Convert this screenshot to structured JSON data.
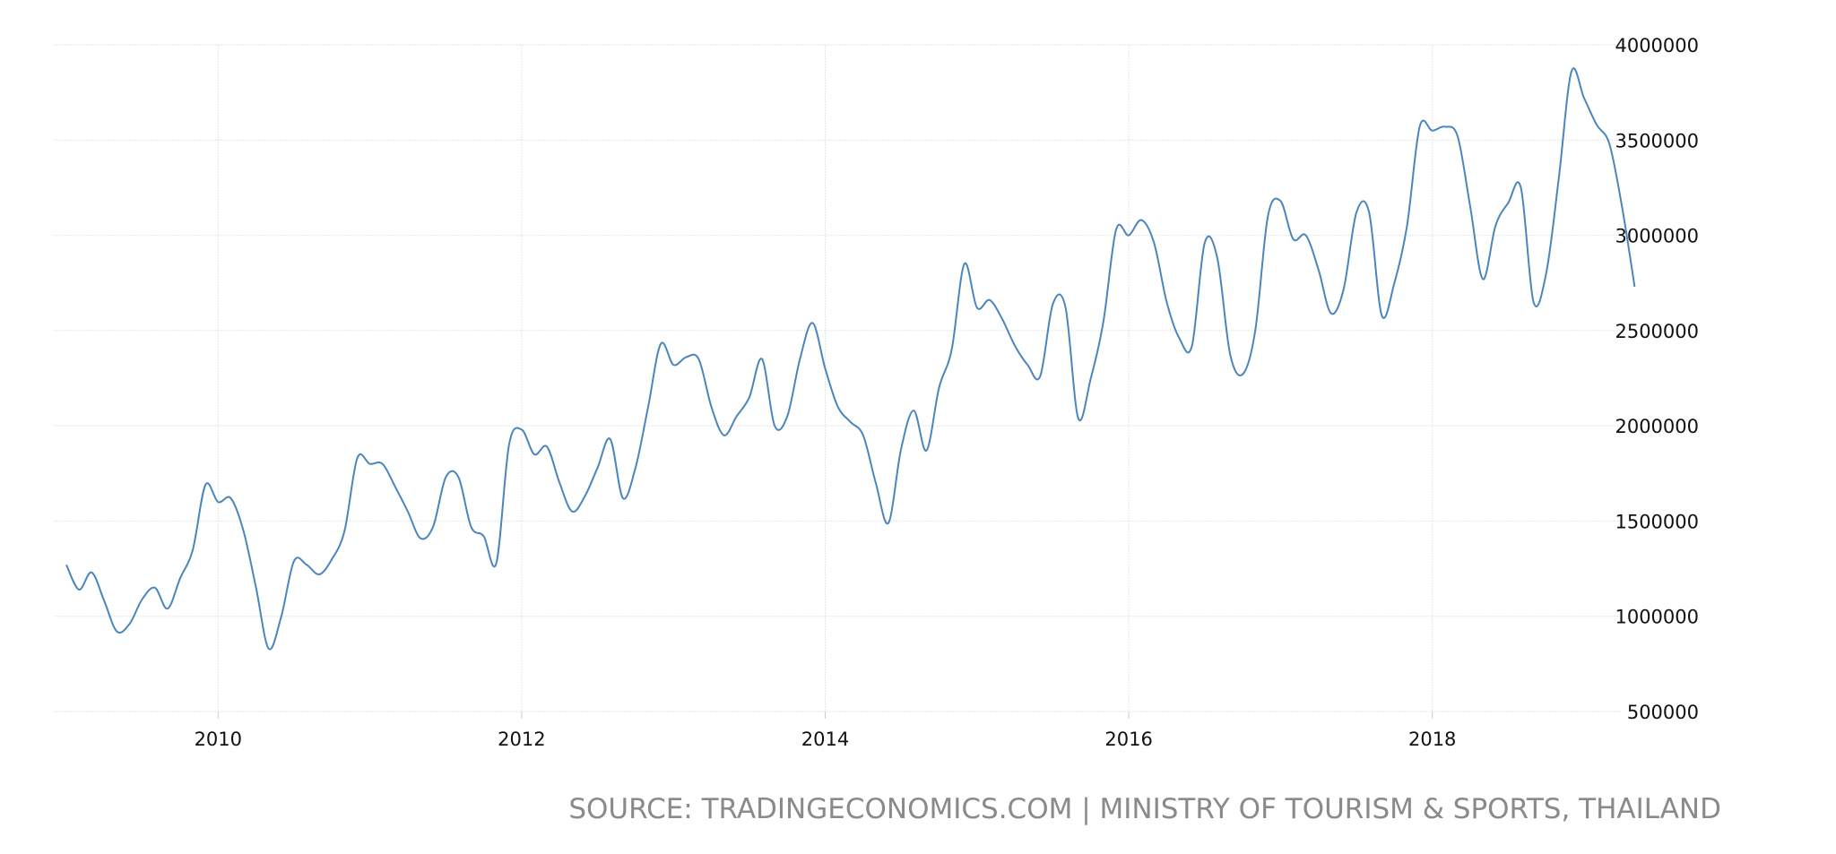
{
  "chart_data": {
    "type": "line",
    "title": "",
    "xlabel": "",
    "ylabel": "",
    "x_start": "2009-01",
    "x_end": "2019-05",
    "frequency": "monthly",
    "x_ticks": [
      "2010",
      "2012",
      "2014",
      "2016",
      "2018"
    ],
    "y_ticks": [
      "500000",
      "1000000",
      "1500000",
      "2000000",
      "2500000",
      "3000000",
      "3500000",
      "4000000"
    ],
    "ylim": [
      500000,
      4000000
    ],
    "grid": true,
    "y_axis_position": "right",
    "line_color": "#4a86bd",
    "series": [
      {
        "values": [
          1270000,
          1140000,
          1230000,
          1080000,
          920000,
          960000,
          1090000,
          1150000,
          1040000,
          1200000,
          1350000,
          1690000,
          1600000,
          1620000,
          1450000,
          1150000,
          830000,
          1000000,
          1290000,
          1270000,
          1220000,
          1300000,
          1450000,
          1830000,
          1800000,
          1800000,
          1680000,
          1550000,
          1410000,
          1470000,
          1730000,
          1730000,
          1470000,
          1420000,
          1280000,
          1900000,
          1980000,
          1850000,
          1890000,
          1700000,
          1550000,
          1630000,
          1780000,
          1930000,
          1620000,
          1780000,
          2100000,
          2430000,
          2320000,
          2360000,
          2350000,
          2100000,
          1950000,
          2050000,
          2150000,
          2350000,
          2000000,
          2050000,
          2350000,
          2540000,
          2300000,
          2100000,
          2020000,
          1950000,
          1700000,
          1490000,
          1880000,
          2080000,
          1870000,
          2200000,
          2400000,
          2850000,
          2620000,
          2660000,
          2560000,
          2420000,
          2320000,
          2260000,
          2640000,
          2620000,
          2040000,
          2250000,
          2550000,
          3030000,
          3000000,
          3080000,
          2960000,
          2650000,
          2460000,
          2420000,
          2960000,
          2880000,
          2380000,
          2270000,
          2500000,
          3100000,
          3180000,
          2980000,
          3000000,
          2820000,
          2590000,
          2720000,
          3120000,
          3120000,
          2580000,
          2750000,
          3050000,
          3570000,
          3550000,
          3570000,
          3520000,
          3150000,
          2770000,
          3050000,
          3170000,
          3250000,
          2650000,
          2800000,
          3300000,
          3860000,
          3720000,
          3580000,
          3480000,
          3150000,
          2730000
        ]
      }
    ]
  },
  "source": "SOURCE: TRADINGECONOMICS.COM | MINISTRY OF TOURISM & SPORTS, THAILAND"
}
